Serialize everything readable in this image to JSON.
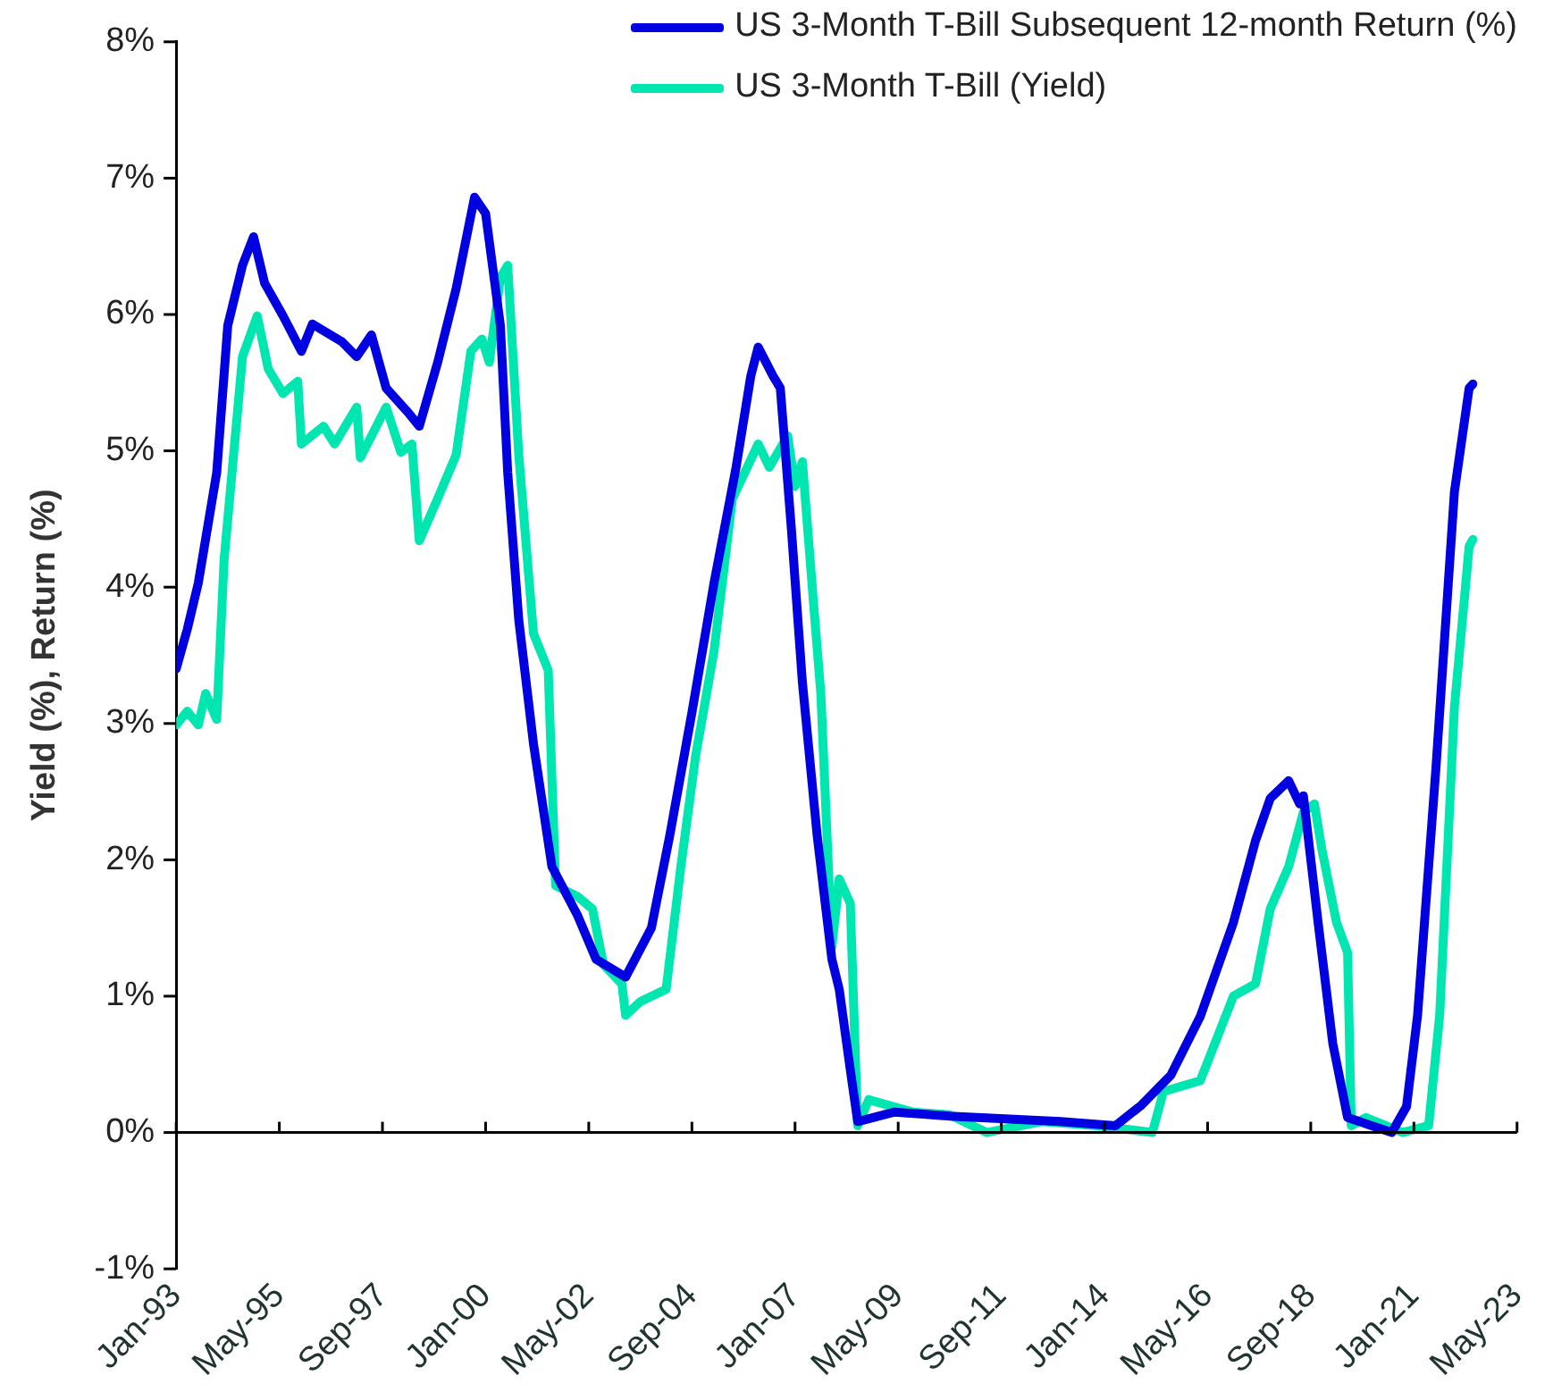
{
  "chart_data": {
    "type": "line",
    "ylabel": "Yield (%), Return (%)",
    "legend": "top right",
    "marker": "none",
    "line_style": "solid",
    "grid": false,
    "xlim": [
      "1993-01",
      "2023-05"
    ],
    "xticks": [
      {
        "value": "1993-01",
        "label": "Jan-93"
      },
      {
        "value": "1995-05",
        "label": "May-95"
      },
      {
        "value": "1997-09",
        "label": "Sep-97"
      },
      {
        "value": "2000-01",
        "label": "Jan-00"
      },
      {
        "value": "2002-05",
        "label": "May-02"
      },
      {
        "value": "2004-09",
        "label": "Sep-04"
      },
      {
        "value": "2007-01",
        "label": "Jan-07"
      },
      {
        "value": "2009-05",
        "label": "May-09"
      },
      {
        "value": "2011-09",
        "label": "Sep-11"
      },
      {
        "value": "2014-01",
        "label": "Jan-14"
      },
      {
        "value": "2016-05",
        "label": "May-16"
      },
      {
        "value": "2018-09",
        "label": "Sep-18"
      },
      {
        "value": "2021-01",
        "label": "Jan-21"
      },
      {
        "value": "2023-05",
        "label": "May-23"
      }
    ],
    "ylim": [
      -1,
      8
    ],
    "ref_lines": [
      {
        "axis": "y",
        "value": 0,
        "color": "#000000"
      }
    ],
    "yticks": [
      {
        "value": -1,
        "label": "-1%"
      },
      {
        "value": 0,
        "label": "0%"
      },
      {
        "value": 1,
        "label": "1%"
      },
      {
        "value": 2,
        "label": "2%"
      },
      {
        "value": 3,
        "label": "3%"
      },
      {
        "value": 4,
        "label": "4%"
      },
      {
        "value": 5,
        "label": "5%"
      },
      {
        "value": 6,
        "label": "6%"
      },
      {
        "value": 7,
        "label": "7%"
      },
      {
        "value": 8,
        "label": "8%"
      }
    ],
    "series": [
      {
        "name": "US 3-Month T-Bill Subsequent 12-month Return (%)",
        "color": "#0000e0",
        "x": [
          "1993-01",
          "1993-04",
          "1993-07",
          "1993-12",
          "1994-03",
          "1994-07",
          "1994-10",
          "1995-01",
          "1995-06",
          "1995-11",
          "1996-02",
          "1996-10",
          "1997-02",
          "1997-06",
          "1997-10",
          "1998-04",
          "1998-07",
          "1998-12",
          "1999-05",
          "1999-10",
          "2000-01",
          "2000-05",
          "2000-07",
          "2000-10",
          "2001-02",
          "2001-07",
          "2002-02",
          "2002-07",
          "2003-03",
          "2003-10",
          "2004-03",
          "2004-09",
          "2005-03",
          "2005-09",
          "2006-01",
          "2006-03",
          "2006-07",
          "2006-09",
          "2006-12",
          "2007-03",
          "2007-07",
          "2007-11",
          "2008-01",
          "2008-04",
          "2008-06",
          "2009-04",
          "2010-07",
          "2011-10",
          "2013-01",
          "2014-04",
          "2014-11",
          "2015-07",
          "2016-03",
          "2016-12",
          "2017-06",
          "2017-10",
          "2018-03",
          "2018-06",
          "2018-07",
          "2018-11",
          "2019-03",
          "2019-07",
          "2020-07",
          "2020-11",
          "2021-02",
          "2021-07",
          "2021-12",
          "2022-04",
          "2022-05"
        ],
        "values": [
          3.4,
          3.69,
          4.03,
          4.84,
          5.92,
          6.36,
          6.57,
          6.23,
          5.99,
          5.73,
          5.93,
          5.8,
          5.69,
          5.85,
          5.46,
          5.28,
          5.18,
          5.65,
          6.19,
          6.86,
          6.74,
          5.92,
          4.84,
          3.76,
          2.85,
          1.95,
          1.59,
          1.27,
          1.14,
          1.5,
          2.18,
          3.08,
          4.03,
          4.88,
          5.55,
          5.76,
          5.55,
          5.46,
          4.43,
          3.3,
          2.18,
          1.27,
          1.05,
          0.46,
          0.08,
          0.15,
          0.12,
          0.1,
          0.08,
          0.05,
          0.2,
          0.42,
          0.85,
          1.54,
          2.14,
          2.45,
          2.58,
          2.41,
          2.47,
          1.54,
          0.65,
          0.11,
          0.0,
          0.19,
          0.86,
          2.68,
          4.7,
          5.46,
          5.49
        ]
      },
      {
        "name": "US 3-Month T-Bill (Yield)",
        "color": "#00e6b0",
        "x": [
          "1993-01",
          "1993-04",
          "1993-07",
          "1993-09",
          "1993-12",
          "1994-02",
          "1994-07",
          "1994-11",
          "1995-02",
          "1995-06",
          "1995-10",
          "1995-11",
          "1996-05",
          "1996-08",
          "1997-02",
          "1997-03",
          "1997-10",
          "1998-02",
          "1998-05",
          "1998-07",
          "1998-12",
          "1999-05",
          "1999-09",
          "1999-12",
          "2000-02",
          "2000-05",
          "2000-07",
          "2000-10",
          "2001-02",
          "2001-06",
          "2001-08",
          "2002-02",
          "2002-06",
          "2002-09",
          "2003-02",
          "2003-03",
          "2003-07",
          "2004-02",
          "2004-06",
          "2004-10",
          "2005-03",
          "2005-08",
          "2006-03",
          "2006-06",
          "2006-11",
          "2007-01",
          "2007-03",
          "2007-06",
          "2007-08",
          "2007-11",
          "2008-01",
          "2008-04",
          "2008-06",
          "2008-09",
          "2009-09",
          "2010-07",
          "2011-05",
          "2012-08",
          "2013-11",
          "2015-02",
          "2015-05",
          "2016-03",
          "2016-12",
          "2017-06",
          "2017-10",
          "2018-03",
          "2018-07",
          "2018-10",
          "2018-12",
          "2019-04",
          "2019-07",
          "2019-08",
          "2019-12",
          "2020-10",
          "2021-05",
          "2021-08",
          "2021-12",
          "2022-04",
          "2022-05"
        ],
        "values": [
          2.99,
          3.09,
          2.99,
          3.22,
          3.03,
          4.2,
          5.69,
          5.99,
          5.6,
          5.42,
          5.51,
          5.05,
          5.18,
          5.05,
          5.32,
          4.95,
          5.32,
          4.99,
          5.05,
          4.34,
          4.65,
          4.97,
          5.73,
          5.82,
          5.65,
          6.27,
          6.36,
          4.97,
          3.66,
          3.39,
          1.81,
          1.73,
          1.64,
          1.23,
          1.09,
          0.86,
          0.96,
          1.05,
          1.95,
          2.76,
          3.53,
          4.65,
          5.05,
          4.88,
          5.11,
          4.74,
          4.92,
          3.89,
          3.22,
          1.36,
          1.86,
          1.68,
          0.05,
          0.24,
          0.15,
          0.13,
          0.0,
          0.08,
          0.05,
          0.0,
          0.3,
          0.38,
          1.0,
          1.09,
          1.64,
          1.95,
          2.35,
          2.41,
          2.08,
          1.54,
          1.32,
          0.05,
          0.11,
          0.0,
          0.05,
          0.86,
          3.12,
          4.3,
          4.35
        ]
      }
    ]
  }
}
